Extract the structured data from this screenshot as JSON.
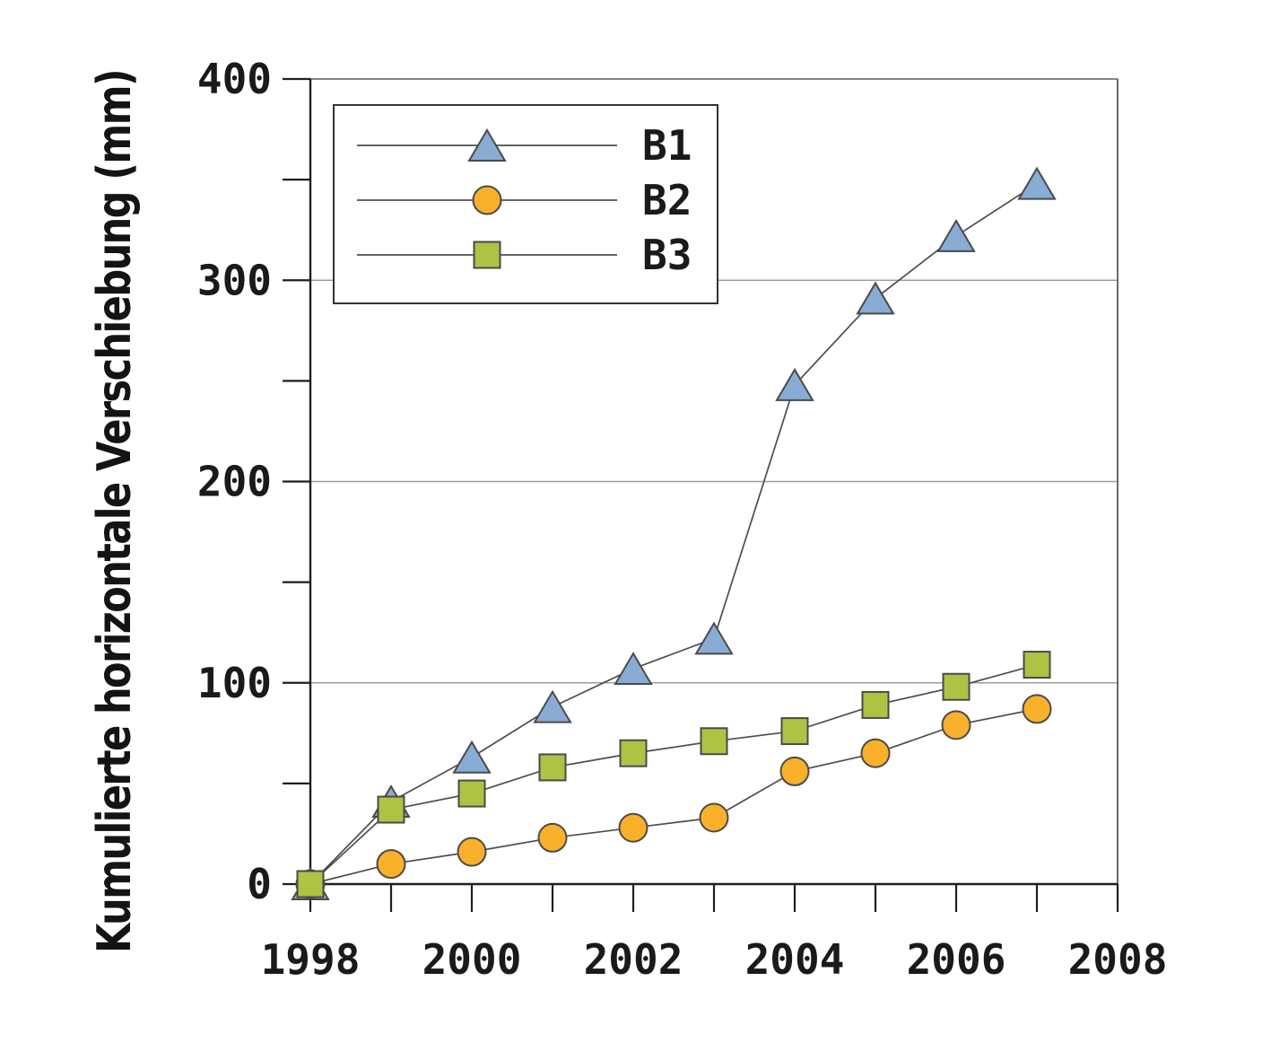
{
  "chart_data": {
    "type": "line",
    "title": "",
    "xlabel": "",
    "ylabel": "Kumulierte horizontale Verschiebung (mm)",
    "x": [
      1998,
      1999,
      2000,
      2001,
      2002,
      2003,
      2004,
      2005,
      2006,
      2007
    ],
    "series": [
      {
        "name": "B1",
        "marker": "triangle",
        "color": "#89ACD5",
        "values": [
          0,
          41,
          63,
          88,
          107,
          122,
          248,
          291,
          322,
          348
        ]
      },
      {
        "name": "B2",
        "marker": "circle",
        "color": "#F9B02B",
        "values": [
          0,
          10,
          16,
          23,
          28,
          33,
          56,
          65,
          79,
          87
        ]
      },
      {
        "name": "B3",
        "marker": "square",
        "color": "#ADC344",
        "values": [
          0,
          37,
          45,
          58,
          65,
          71,
          76,
          89,
          98,
          109
        ]
      }
    ],
    "xlim": [
      1998,
      2008
    ],
    "ylim": [
      0,
      400
    ],
    "x_tick_labels": [
      "1998",
      "2000",
      "2002",
      "2004",
      "2006",
      "2008"
    ],
    "x_minor_tick_step": 1,
    "y_tick_labels": [
      "0",
      "100",
      "200",
      "300",
      "400"
    ],
    "y_major_tick_step": 100,
    "y_minor_tick_step": 50,
    "grid": "horizontal major gridlines only",
    "legend": {
      "position": "top-left-inside",
      "entries": [
        "B1",
        "B2",
        "B3"
      ]
    }
  },
  "colors": {
    "axis": "#1f1f1f",
    "grid": "#9c9c9c",
    "frame": "#5a5a5a",
    "series_line": "#4d4d4d",
    "marker_outline": "#4a4a4a",
    "legend_border": "#333333",
    "text": "#1a1a1a"
  }
}
